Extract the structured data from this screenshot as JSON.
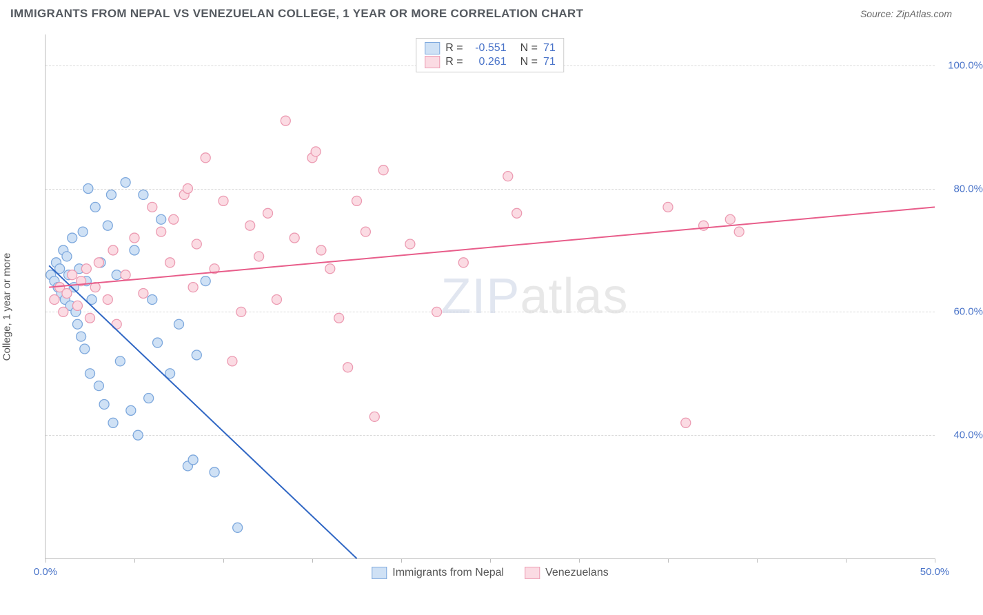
{
  "header": {
    "title": "IMMIGRANTS FROM NEPAL VS VENEZUELAN COLLEGE, 1 YEAR OR MORE CORRELATION CHART",
    "source_prefix": "Source: ",
    "source_name": "ZipAtlas.com"
  },
  "watermark": {
    "zip": "ZIP",
    "atlas": "atlas"
  },
  "chart": {
    "type": "scatter",
    "ylabel": "College, 1 year or more",
    "xlim": [
      0,
      50
    ],
    "ylim": [
      20,
      105
    ],
    "xticks": [
      0.0,
      50.0
    ],
    "xtick_marks": [
      0,
      5,
      10,
      15,
      20,
      25,
      30,
      35,
      40,
      45,
      50
    ],
    "yticks": [
      40.0,
      60.0,
      80.0,
      100.0
    ],
    "grid_color": "#d9d9d9",
    "axis_color": "#bbbbbb",
    "background_color": "#ffffff",
    "tick_color": "#4a74c9",
    "marker_radius": 7,
    "marker_stroke_width": 1.3,
    "line_width": 2,
    "series": [
      {
        "name": "Immigrants from Nepal",
        "color_fill": "#cfe1f5",
        "color_stroke": "#7da8dd",
        "line_color": "#2f66c4",
        "R": "-0.551",
        "N": "71",
        "trend": {
          "x1": 0.2,
          "y1": 67.5,
          "x2": 17.5,
          "y2": 20
        },
        "points": [
          [
            0.3,
            66
          ],
          [
            0.5,
            65
          ],
          [
            0.6,
            68
          ],
          [
            0.7,
            64
          ],
          [
            0.8,
            67
          ],
          [
            0.9,
            63
          ],
          [
            1.0,
            70
          ],
          [
            1.1,
            62
          ],
          [
            1.2,
            69
          ],
          [
            1.3,
            66
          ],
          [
            1.4,
            61
          ],
          [
            1.5,
            72
          ],
          [
            1.6,
            64
          ],
          [
            1.7,
            60
          ],
          [
            1.8,
            58
          ],
          [
            1.9,
            67
          ],
          [
            2.0,
            56
          ],
          [
            2.1,
            73
          ],
          [
            2.2,
            54
          ],
          [
            2.3,
            65
          ],
          [
            2.4,
            80
          ],
          [
            2.5,
            50
          ],
          [
            2.6,
            62
          ],
          [
            2.8,
            77
          ],
          [
            3.0,
            48
          ],
          [
            3.1,
            68
          ],
          [
            3.3,
            45
          ],
          [
            3.5,
            74
          ],
          [
            3.7,
            79
          ],
          [
            3.8,
            42
          ],
          [
            4.0,
            66
          ],
          [
            4.2,
            52
          ],
          [
            4.5,
            81
          ],
          [
            4.8,
            44
          ],
          [
            5.0,
            70
          ],
          [
            5.2,
            40
          ],
          [
            5.5,
            79
          ],
          [
            5.8,
            46
          ],
          [
            6.0,
            62
          ],
          [
            6.3,
            55
          ],
          [
            6.5,
            75
          ],
          [
            7.0,
            50
          ],
          [
            7.5,
            58
          ],
          [
            8.0,
            35
          ],
          [
            8.3,
            36
          ],
          [
            8.5,
            53
          ],
          [
            9.0,
            65
          ],
          [
            9.5,
            34
          ],
          [
            10.8,
            25
          ]
        ]
      },
      {
        "name": "Venezuelans",
        "color_fill": "#fbdbe3",
        "color_stroke": "#ec9bb2",
        "line_color": "#e85d8a",
        "R": "0.261",
        "N": "71",
        "trend": {
          "x1": 0.2,
          "y1": 64,
          "x2": 50,
          "y2": 77
        },
        "points": [
          [
            0.5,
            62
          ],
          [
            0.8,
            64
          ],
          [
            1.0,
            60
          ],
          [
            1.2,
            63
          ],
          [
            1.5,
            66
          ],
          [
            1.8,
            61
          ],
          [
            2.0,
            65
          ],
          [
            2.3,
            67
          ],
          [
            2.5,
            59
          ],
          [
            2.8,
            64
          ],
          [
            3.0,
            68
          ],
          [
            3.5,
            62
          ],
          [
            3.8,
            70
          ],
          [
            4.0,
            58
          ],
          [
            4.5,
            66
          ],
          [
            5.0,
            72
          ],
          [
            5.5,
            63
          ],
          [
            6.0,
            77
          ],
          [
            6.5,
            73
          ],
          [
            7.0,
            68
          ],
          [
            7.2,
            75
          ],
          [
            7.8,
            79
          ],
          [
            8.0,
            80
          ],
          [
            8.3,
            64
          ],
          [
            8.5,
            71
          ],
          [
            9.0,
            85
          ],
          [
            9.5,
            67
          ],
          [
            10.0,
            78
          ],
          [
            10.5,
            52
          ],
          [
            11.0,
            60
          ],
          [
            11.5,
            74
          ],
          [
            12.0,
            69
          ],
          [
            12.5,
            76
          ],
          [
            13.0,
            62
          ],
          [
            13.5,
            91
          ],
          [
            14.0,
            72
          ],
          [
            15.0,
            85
          ],
          [
            15.2,
            86
          ],
          [
            15.5,
            70
          ],
          [
            16.0,
            67
          ],
          [
            16.5,
            59
          ],
          [
            17.0,
            51
          ],
          [
            17.5,
            78
          ],
          [
            18.0,
            73
          ],
          [
            18.5,
            43
          ],
          [
            19.0,
            83
          ],
          [
            20.5,
            71
          ],
          [
            22.0,
            60
          ],
          [
            23.5,
            68
          ],
          [
            26.0,
            82
          ],
          [
            26.5,
            76
          ],
          [
            35.0,
            77
          ],
          [
            36.0,
            42
          ],
          [
            37.0,
            74
          ],
          [
            38.5,
            75
          ],
          [
            39.0,
            73
          ]
        ]
      }
    ]
  },
  "legend_bottom": [
    {
      "label": "Immigrants from Nepal",
      "fill": "#cfe1f5",
      "stroke": "#7da8dd"
    },
    {
      "label": "Venezuelans",
      "fill": "#fbdbe3",
      "stroke": "#ec9bb2"
    }
  ]
}
